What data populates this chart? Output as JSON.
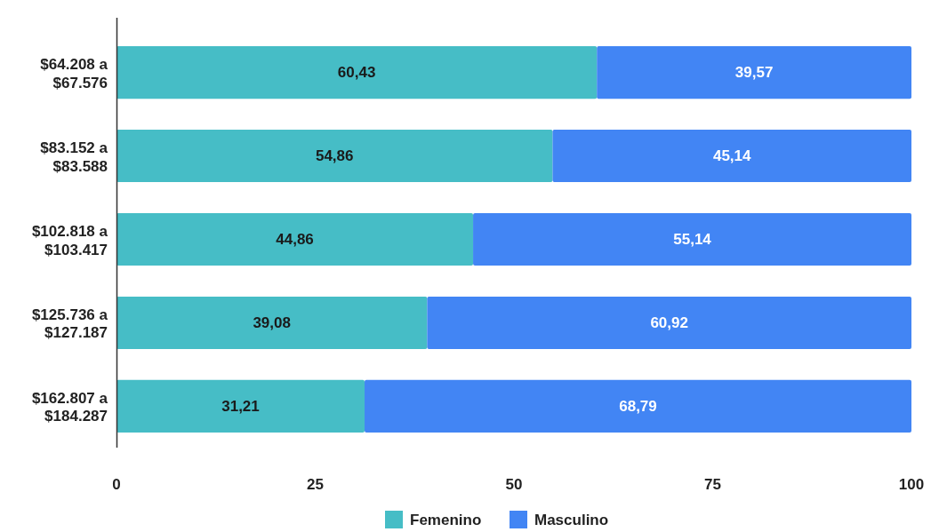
{
  "chart_data": {
    "type": "bar",
    "orientation": "horizontal",
    "stacked": true,
    "categories": [
      "$64.208 a $67.576",
      "$83.152 a $83.588",
      "$102.818 a $103.417",
      "$125.736 a $127.187",
      "$162.807 a $184.287"
    ],
    "series": [
      {
        "name": "Femenino",
        "color": "#46bdc6",
        "values": [
          60.43,
          54.86,
          44.86,
          39.08,
          31.21
        ],
        "value_labels": [
          "60,43",
          "54,86",
          "44,86",
          "39,08",
          "31,21"
        ]
      },
      {
        "name": "Masculino",
        "color": "#4285f4",
        "values": [
          39.57,
          45.14,
          55.14,
          60.92,
          68.79
        ],
        "value_labels": [
          "39,57",
          "45,14",
          "55,14",
          "60,92",
          "68,79"
        ]
      }
    ],
    "xlim": [
      0,
      100
    ],
    "xticks": [
      0,
      25,
      50,
      75,
      100
    ],
    "grid": false,
    "legend": "bottom"
  }
}
